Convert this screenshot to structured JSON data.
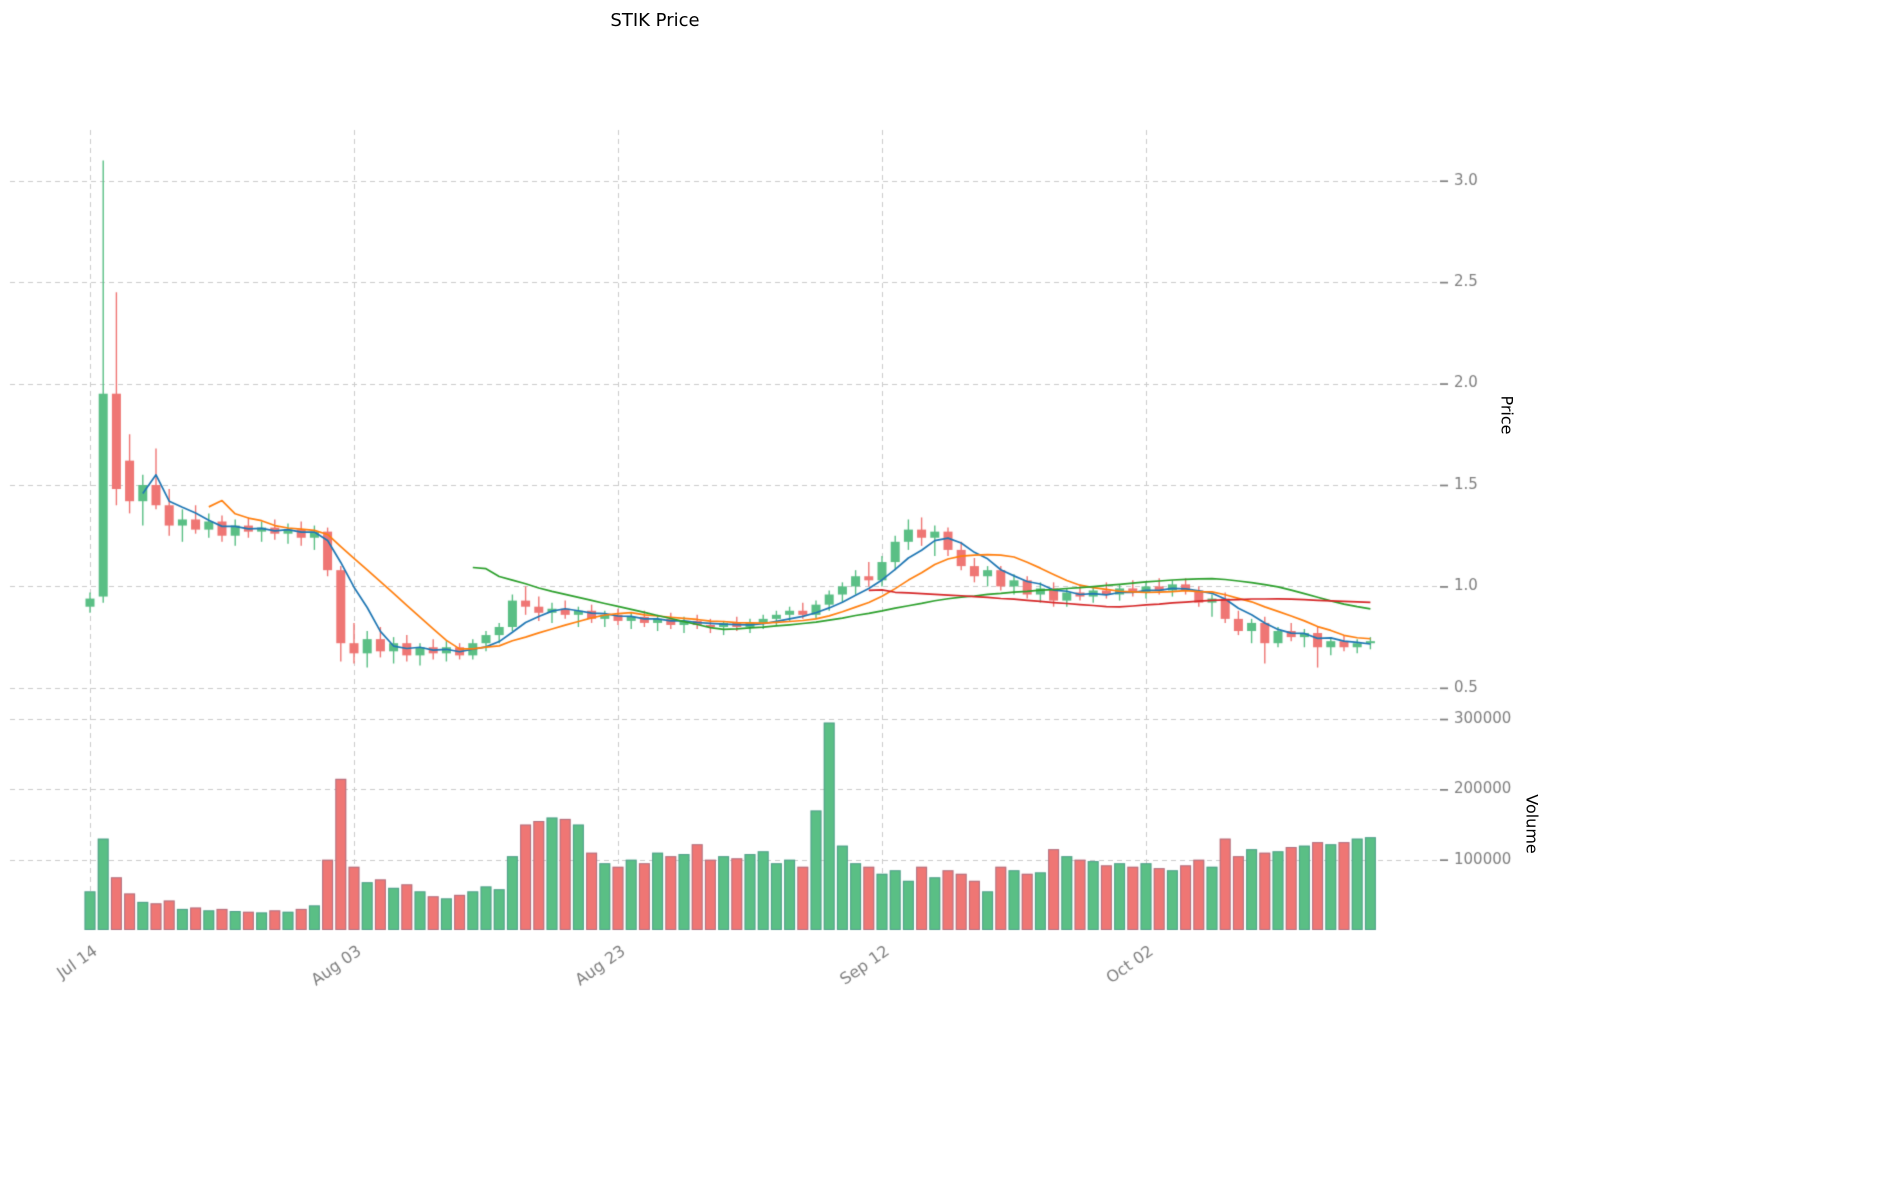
{
  "chart_data": {
    "type": "candlestick",
    "title": "STIK Price",
    "price_ylabel": "Price",
    "volume_ylabel": "Volume",
    "legend": "none",
    "grid": true,
    "price_ticks": [
      0.5,
      1.0,
      1.5,
      2.0,
      2.5,
      3.0
    ],
    "price_ylim": [
      0.44,
      3.25
    ],
    "volume_ticks": [
      100000,
      200000,
      300000
    ],
    "volume_ylim": [
      0,
      310000
    ],
    "x_ticks": [
      {
        "index": 0,
        "label": "Jul 14"
      },
      {
        "index": 20,
        "label": "Aug 03"
      },
      {
        "index": 40,
        "label": "Aug 23"
      },
      {
        "index": 60,
        "label": "Sep 12"
      },
      {
        "index": 80,
        "label": "Oct 02"
      }
    ],
    "colors": {
      "up": "#5abf85",
      "down": "#ef7674",
      "grid": "#cccccc",
      "tick_text": "#7f7f7f",
      "volume_bar_edge": "rgba(60,100,150,0.35)"
    },
    "moving_averages": [
      {
        "window": 5,
        "color": "#1f77b4"
      },
      {
        "window": 10,
        "color": "#ff7f0e"
      },
      {
        "window": 30,
        "color": "#2ca02c"
      },
      {
        "window": 60,
        "color": "#d62728"
      }
    ],
    "candles": {
      "columns": [
        "open",
        "high",
        "low",
        "close",
        "volume"
      ],
      "rows": [
        [
          0.9,
          0.97,
          0.87,
          0.94,
          55000
        ],
        [
          0.95,
          3.1,
          0.92,
          1.95,
          130000
        ],
        [
          1.95,
          2.45,
          1.4,
          1.48,
          75000
        ],
        [
          1.62,
          1.75,
          1.36,
          1.42,
          52000
        ],
        [
          1.42,
          1.55,
          1.3,
          1.5,
          40000
        ],
        [
          1.5,
          1.68,
          1.38,
          1.4,
          38000
        ],
        [
          1.4,
          1.48,
          1.25,
          1.3,
          42000
        ],
        [
          1.3,
          1.38,
          1.22,
          1.33,
          30000
        ],
        [
          1.33,
          1.4,
          1.26,
          1.28,
          32000
        ],
        [
          1.28,
          1.36,
          1.24,
          1.32,
          28000
        ],
        [
          1.32,
          1.35,
          1.22,
          1.25,
          30000
        ],
        [
          1.25,
          1.33,
          1.2,
          1.3,
          27000
        ],
        [
          1.3,
          1.34,
          1.24,
          1.27,
          26000
        ],
        [
          1.27,
          1.32,
          1.22,
          1.29,
          25000
        ],
        [
          1.29,
          1.33,
          1.23,
          1.26,
          28000
        ],
        [
          1.26,
          1.31,
          1.21,
          1.28,
          26000
        ],
        [
          1.28,
          1.32,
          1.2,
          1.24,
          30000
        ],
        [
          1.24,
          1.3,
          1.18,
          1.27,
          35000
        ],
        [
          1.27,
          1.29,
          1.05,
          1.08,
          100000
        ],
        [
          1.08,
          1.1,
          0.63,
          0.72,
          215000
        ],
        [
          0.72,
          0.82,
          0.62,
          0.67,
          90000
        ],
        [
          0.67,
          0.78,
          0.6,
          0.74,
          68000
        ],
        [
          0.74,
          0.8,
          0.65,
          0.68,
          72000
        ],
        [
          0.68,
          0.75,
          0.62,
          0.72,
          60000
        ],
        [
          0.72,
          0.76,
          0.63,
          0.66,
          65000
        ],
        [
          0.66,
          0.72,
          0.61,
          0.7,
          55000
        ],
        [
          0.7,
          0.74,
          0.64,
          0.67,
          48000
        ],
        [
          0.67,
          0.73,
          0.63,
          0.7,
          45000
        ],
        [
          0.7,
          0.72,
          0.64,
          0.66,
          50000
        ],
        [
          0.66,
          0.74,
          0.64,
          0.72,
          55000
        ],
        [
          0.72,
          0.78,
          0.68,
          0.76,
          62000
        ],
        [
          0.76,
          0.82,
          0.72,
          0.8,
          58000
        ],
        [
          0.8,
          0.96,
          0.78,
          0.93,
          105000
        ],
        [
          0.93,
          1.0,
          0.86,
          0.9,
          150000
        ],
        [
          0.9,
          0.95,
          0.83,
          0.87,
          155000
        ],
        [
          0.87,
          0.92,
          0.82,
          0.89,
          160000
        ],
        [
          0.89,
          0.93,
          0.84,
          0.86,
          158000
        ],
        [
          0.86,
          0.9,
          0.8,
          0.88,
          150000
        ],
        [
          0.88,
          0.91,
          0.82,
          0.84,
          110000
        ],
        [
          0.84,
          0.88,
          0.8,
          0.86,
          95000
        ],
        [
          0.86,
          0.89,
          0.81,
          0.83,
          90000
        ],
        [
          0.83,
          0.87,
          0.79,
          0.85,
          100000
        ],
        [
          0.85,
          0.88,
          0.8,
          0.82,
          95000
        ],
        [
          0.82,
          0.86,
          0.78,
          0.84,
          110000
        ],
        [
          0.84,
          0.87,
          0.79,
          0.81,
          105000
        ],
        [
          0.81,
          0.85,
          0.77,
          0.83,
          108000
        ],
        [
          0.83,
          0.86,
          0.79,
          0.81,
          122000
        ],
        [
          0.81,
          0.84,
          0.77,
          0.8,
          100000
        ],
        [
          0.8,
          0.83,
          0.76,
          0.82,
          105000
        ],
        [
          0.82,
          0.85,
          0.78,
          0.8,
          102000
        ],
        [
          0.8,
          0.84,
          0.77,
          0.82,
          108000
        ],
        [
          0.82,
          0.86,
          0.79,
          0.84,
          112000
        ],
        [
          0.84,
          0.88,
          0.81,
          0.86,
          95000
        ],
        [
          0.86,
          0.9,
          0.83,
          0.88,
          100000
        ],
        [
          0.88,
          0.92,
          0.84,
          0.86,
          90000
        ],
        [
          0.86,
          0.93,
          0.84,
          0.91,
          170000
        ],
        [
          0.91,
          0.98,
          0.88,
          0.96,
          295000
        ],
        [
          0.96,
          1.02,
          0.92,
          1.0,
          120000
        ],
        [
          1.0,
          1.08,
          0.96,
          1.05,
          95000
        ],
        [
          1.05,
          1.12,
          1.0,
          1.03,
          90000
        ],
        [
          1.03,
          1.15,
          1.0,
          1.12,
          80000
        ],
        [
          1.12,
          1.25,
          1.08,
          1.22,
          85000
        ],
        [
          1.22,
          1.33,
          1.18,
          1.28,
          70000
        ],
        [
          1.28,
          1.34,
          1.2,
          1.24,
          90000
        ],
        [
          1.24,
          1.3,
          1.15,
          1.27,
          75000
        ],
        [
          1.27,
          1.29,
          1.15,
          1.18,
          85000
        ],
        [
          1.18,
          1.22,
          1.08,
          1.1,
          80000
        ],
        [
          1.1,
          1.14,
          1.02,
          1.05,
          70000
        ],
        [
          1.05,
          1.1,
          1.0,
          1.08,
          55000
        ],
        [
          1.08,
          1.1,
          0.98,
          1.0,
          90000
        ],
        [
          1.0,
          1.06,
          0.96,
          1.03,
          85000
        ],
        [
          1.03,
          1.05,
          0.94,
          0.96,
          80000
        ],
        [
          0.96,
          1.02,
          0.92,
          0.99,
          82000
        ],
        [
          0.99,
          1.02,
          0.9,
          0.93,
          115000
        ],
        [
          0.93,
          0.99,
          0.9,
          0.97,
          105000
        ],
        [
          0.97,
          1.01,
          0.93,
          0.95,
          100000
        ],
        [
          0.95,
          1.0,
          0.92,
          0.98,
          98000
        ],
        [
          0.98,
          1.02,
          0.94,
          0.96,
          92000
        ],
        [
          0.96,
          1.01,
          0.93,
          0.99,
          95000
        ],
        [
          0.99,
          1.03,
          0.95,
          0.97,
          90000
        ],
        [
          0.97,
          1.02,
          0.94,
          1.0,
          95000
        ],
        [
          1.0,
          1.04,
          0.96,
          0.98,
          88000
        ],
        [
          0.98,
          1.03,
          0.95,
          1.01,
          85000
        ],
        [
          1.01,
          1.04,
          0.96,
          0.98,
          92000
        ],
        [
          0.98,
          1.0,
          0.9,
          0.92,
          100000
        ],
        [
          0.92,
          0.96,
          0.85,
          0.94,
          90000
        ],
        [
          0.94,
          0.97,
          0.82,
          0.84,
          130000
        ],
        [
          0.84,
          0.88,
          0.76,
          0.78,
          105000
        ],
        [
          0.78,
          0.84,
          0.72,
          0.82,
          115000
        ],
        [
          0.82,
          0.85,
          0.62,
          0.72,
          110000
        ],
        [
          0.72,
          0.8,
          0.7,
          0.78,
          112000
        ],
        [
          0.78,
          0.82,
          0.73,
          0.75,
          118000
        ],
        [
          0.75,
          0.79,
          0.7,
          0.77,
          120000
        ],
        [
          0.77,
          0.8,
          0.6,
          0.7,
          125000
        ],
        [
          0.7,
          0.75,
          0.66,
          0.73,
          122000
        ],
        [
          0.73,
          0.76,
          0.68,
          0.7,
          125000
        ],
        [
          0.7,
          0.74,
          0.67,
          0.72,
          130000
        ],
        [
          0.72,
          0.75,
          0.69,
          0.73,
          132000
        ]
      ]
    }
  }
}
